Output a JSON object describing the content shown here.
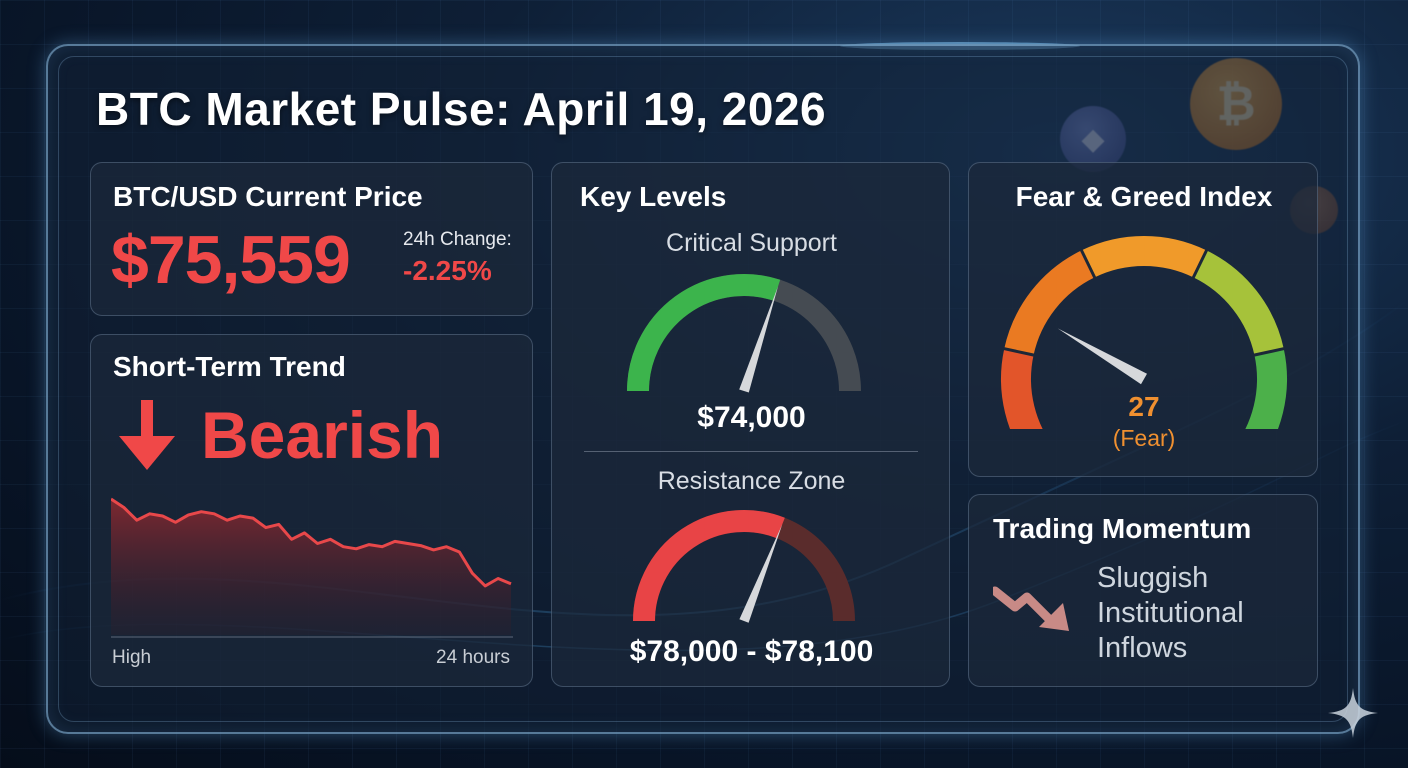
{
  "header": {
    "title": "BTC Market Pulse: April 19, 2026"
  },
  "price": {
    "title": "BTC/USD Current Price",
    "value": "$75,559",
    "change_label": "24h Change:",
    "change_value": "-2.25%"
  },
  "trend": {
    "title": "Short-Term Trend",
    "direction": "Bearish",
    "axis_left": "High",
    "axis_right": "24 hours",
    "sparkline": [
      100,
      92,
      80,
      86,
      84,
      78,
      85,
      88,
      86,
      80,
      84,
      82,
      73,
      76,
      62,
      68,
      58,
      62,
      55,
      53,
      57,
      55,
      60,
      58,
      56,
      52,
      55,
      50,
      30,
      18,
      25,
      20
    ]
  },
  "levels": {
    "title": "Key Levels",
    "support": {
      "label": "Critical Support",
      "value": "$74,000",
      "fill": 0.6
    },
    "resistance": {
      "label": "Resistance Zone",
      "value": "$78,000 - $78,100",
      "fill": 0.62
    }
  },
  "fear_greed": {
    "title": "Fear & Greed Index",
    "value": "27",
    "label": "(Fear)",
    "level": 0.27
  },
  "momentum": {
    "title": "Trading Momentum",
    "lines": [
      "Sluggish",
      "Institutional",
      "Inflows"
    ]
  },
  "colors": {
    "red": "#f04848",
    "green": "#34b44a",
    "orange": "#f09030",
    "background": "#0e1f36"
  },
  "icons": {
    "down_arrow": "arrow-down-icon",
    "momentum": "trend-down-icon",
    "sparkle": "sparkle-icon",
    "coin_btc": "bitcoin-coin-icon",
    "coin_eth": "ethereum-coin-icon"
  }
}
